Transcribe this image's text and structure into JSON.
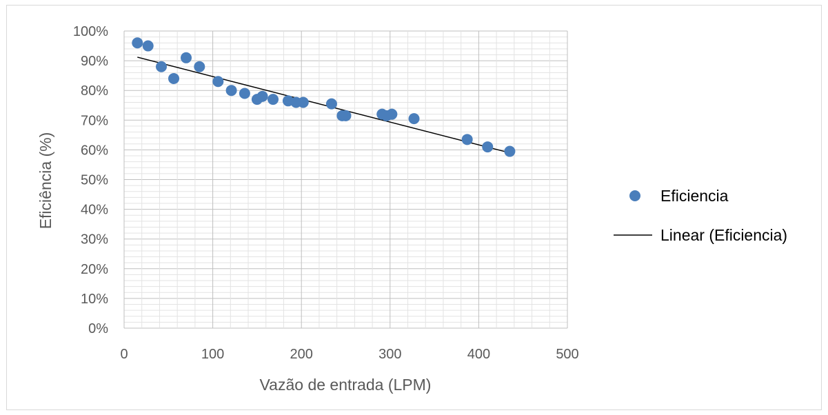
{
  "chart_data": {
    "type": "scatter",
    "title": "",
    "xlabel": "Vazão de entrada (LPM)",
    "ylabel": "Eficiência (%)",
    "xlim": [
      0,
      500
    ],
    "ylim": [
      0,
      1
    ],
    "x_ticks": [
      "0",
      "100",
      "200",
      "300",
      "400",
      "500"
    ],
    "y_ticks": [
      "0%",
      "10%",
      "20%",
      "30%",
      "40%",
      "50%",
      "60%",
      "70%",
      "80%",
      "90%",
      "100%"
    ],
    "grid": true,
    "legend_position": "right",
    "series": [
      {
        "name": "Eficiencia",
        "color": "#4a7ebb",
        "points": [
          {
            "x": 15,
            "y": 0.96
          },
          {
            "x": 27,
            "y": 0.95
          },
          {
            "x": 42,
            "y": 0.88
          },
          {
            "x": 56,
            "y": 0.84
          },
          {
            "x": 70,
            "y": 0.91
          },
          {
            "x": 85,
            "y": 0.88
          },
          {
            "x": 106,
            "y": 0.83
          },
          {
            "x": 121,
            "y": 0.8
          },
          {
            "x": 136,
            "y": 0.79
          },
          {
            "x": 150,
            "y": 0.77
          },
          {
            "x": 156,
            "y": 0.78
          },
          {
            "x": 168,
            "y": 0.77
          },
          {
            "x": 185,
            "y": 0.765
          },
          {
            "x": 194,
            "y": 0.76
          },
          {
            "x": 202,
            "y": 0.76
          },
          {
            "x": 234,
            "y": 0.755
          },
          {
            "x": 246,
            "y": 0.715
          },
          {
            "x": 250,
            "y": 0.715
          },
          {
            "x": 291,
            "y": 0.72
          },
          {
            "x": 296,
            "y": 0.715
          },
          {
            "x": 302,
            "y": 0.72
          },
          {
            "x": 327,
            "y": 0.705
          },
          {
            "x": 387,
            "y": 0.635
          },
          {
            "x": 410,
            "y": 0.61
          },
          {
            "x": 435,
            "y": 0.595
          }
        ]
      }
    ],
    "trendline": {
      "name": "Linear (Eficiencia)",
      "color": "#000000",
      "x": [
        15,
        435
      ],
      "y": [
        0.912,
        0.59
      ]
    }
  }
}
